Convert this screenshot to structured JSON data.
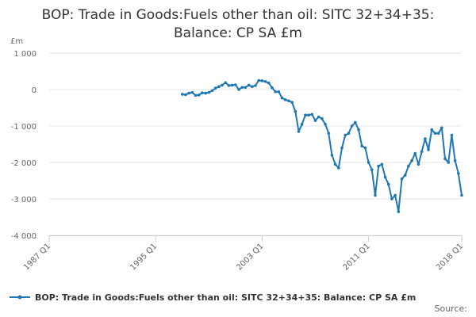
{
  "chart_data": {
    "type": "line",
    "title_line1": "BOP: Trade in Goods:Fuels other than oil: SITC 32+34+35:",
    "title_line2": "Balance: CP SA £m",
    "ylabel": "£m",
    "ylim": [
      -4000,
      1000
    ],
    "yticks": [
      1000,
      0,
      -1000,
      -2000,
      -3000,
      -4000
    ],
    "ytick_labels": [
      "1 000",
      "0",
      "-1 000",
      "-2 000",
      "-3 000",
      "-4 000"
    ],
    "xlim": [
      "1987 Q1",
      "2018 Q1"
    ],
    "xticks": [
      "1987 Q1",
      "1995 Q1",
      "2003 Q1",
      "2011 Q1",
      "2018 Q1"
    ],
    "grid": true,
    "legend_position": "bottom",
    "source_label": "Source:",
    "color": "#1f77b4",
    "series": [
      {
        "name": "BOP: Trade in Goods:Fuels other than oil: SITC 32+34+35: Balance: CP SA £m",
        "x": [
          "1997 Q1",
          "1997 Q2",
          "1997 Q3",
          "1997 Q4",
          "1998 Q1",
          "1998 Q2",
          "1998 Q3",
          "1998 Q4",
          "1999 Q1",
          "1999 Q2",
          "1999 Q3",
          "1999 Q4",
          "2000 Q1",
          "2000 Q2",
          "2000 Q3",
          "2000 Q4",
          "2001 Q1",
          "2001 Q2",
          "2001 Q3",
          "2001 Q4",
          "2002 Q1",
          "2002 Q2",
          "2002 Q3",
          "2002 Q4",
          "2003 Q1",
          "2003 Q2",
          "2003 Q3",
          "2003 Q4",
          "2004 Q1",
          "2004 Q2",
          "2004 Q3",
          "2004 Q4",
          "2005 Q1",
          "2005 Q2",
          "2005 Q3",
          "2005 Q4",
          "2006 Q1",
          "2006 Q2",
          "2006 Q3",
          "2006 Q4",
          "2007 Q1",
          "2007 Q2",
          "2007 Q3",
          "2007 Q4",
          "2008 Q1",
          "2008 Q2",
          "2008 Q3",
          "2008 Q4",
          "2009 Q1",
          "2009 Q2",
          "2009 Q3",
          "2009 Q4",
          "2010 Q1",
          "2010 Q2",
          "2010 Q3",
          "2010 Q4",
          "2011 Q1",
          "2011 Q2",
          "2011 Q3",
          "2011 Q4",
          "2012 Q1",
          "2012 Q2",
          "2012 Q3",
          "2012 Q4",
          "2013 Q1",
          "2013 Q2",
          "2013 Q3",
          "2013 Q4",
          "2014 Q1",
          "2014 Q2",
          "2014 Q3",
          "2014 Q4",
          "2015 Q1",
          "2015 Q2",
          "2015 Q3",
          "2015 Q4",
          "2016 Q1",
          "2016 Q2",
          "2016 Q3",
          "2016 Q4",
          "2017 Q1",
          "2017 Q2",
          "2017 Q3",
          "2017 Q4",
          "2018 Q1"
        ],
        "values": [
          -130,
          -140,
          -100,
          -80,
          -160,
          -150,
          -90,
          -100,
          -80,
          -30,
          40,
          80,
          120,
          190,
          110,
          120,
          130,
          0,
          60,
          60,
          120,
          80,
          110,
          250,
          240,
          220,
          180,
          50,
          -60,
          -60,
          -230,
          -280,
          -310,
          -350,
          -600,
          -1150,
          -950,
          -700,
          -700,
          -680,
          -850,
          -750,
          -800,
          -950,
          -1200,
          -1800,
          -2050,
          -2150,
          -1600,
          -1250,
          -1200,
          -1000,
          -900,
          -1100,
          -1550,
          -1600,
          -2000,
          -2200,
          -2900,
          -2100,
          -2050,
          -2400,
          -2600,
          -3000,
          -2900,
          -3350,
          -2450,
          -2350,
          -2100,
          -1950,
          -1750,
          -2050,
          -1700,
          -1350,
          -1650,
          -1100,
          -1200,
          -1200,
          -1050,
          -1900,
          -2000,
          -1250,
          -1950,
          -2300,
          -2900
        ]
      }
    ]
  }
}
